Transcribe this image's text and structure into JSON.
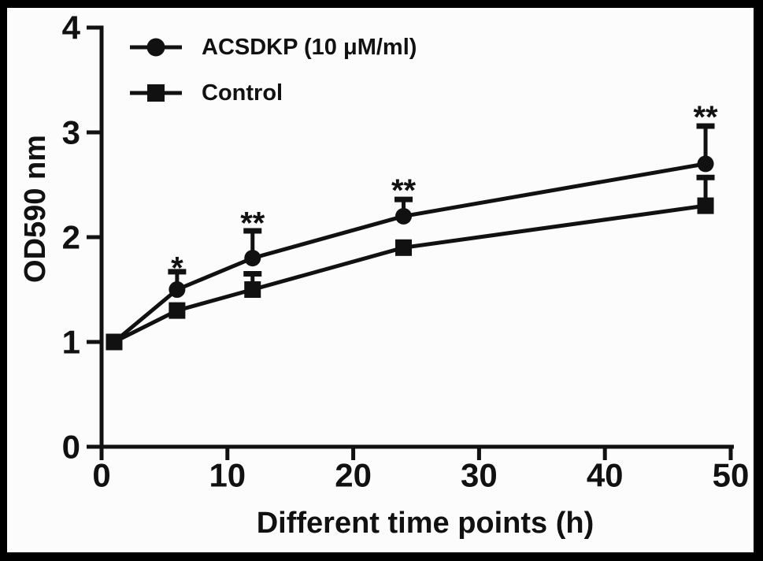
{
  "figure": {
    "frame_color": "#000000",
    "background": "#fcfcfc",
    "ink": "#111111"
  },
  "chart_data": {
    "type": "line",
    "title": "",
    "xlabel": "Different time points (h)",
    "ylabel": "OD590 nm",
    "xlim": [
      0,
      50
    ],
    "ylim": [
      0,
      4
    ],
    "x_ticks": [
      "0",
      "10",
      "20",
      "30",
      "40",
      "50"
    ],
    "x_tick_values": [
      0,
      10,
      20,
      30,
      40,
      50
    ],
    "y_ticks": [
      "0",
      "1",
      "2",
      "3",
      "4"
    ],
    "y_tick_values": [
      0,
      1,
      2,
      3,
      4
    ],
    "grid": false,
    "legend_position": "top-left-inside",
    "x": [
      1,
      6,
      12,
      24,
      48
    ],
    "series": [
      {
        "name": "ACSDKP (10 μM/ml)",
        "marker": "circle",
        "values": [
          1.0,
          1.5,
          1.8,
          2.2,
          2.7
        ],
        "error_up": [
          0,
          0.17,
          0.26,
          0.16,
          0.36
        ]
      },
      {
        "name": "Control",
        "marker": "square",
        "values": [
          1.0,
          1.3,
          1.5,
          1.9,
          2.3
        ],
        "error_up": [
          0,
          0,
          0.15,
          0,
          0.27
        ]
      }
    ],
    "annotations": [
      {
        "text": "*",
        "x": 6,
        "y": 1.77
      },
      {
        "text": "**",
        "x": 12,
        "y": 2.2
      },
      {
        "text": "**",
        "x": 24,
        "y": 2.51
      },
      {
        "text": "**",
        "x": 48,
        "y": 3.21
      }
    ]
  }
}
